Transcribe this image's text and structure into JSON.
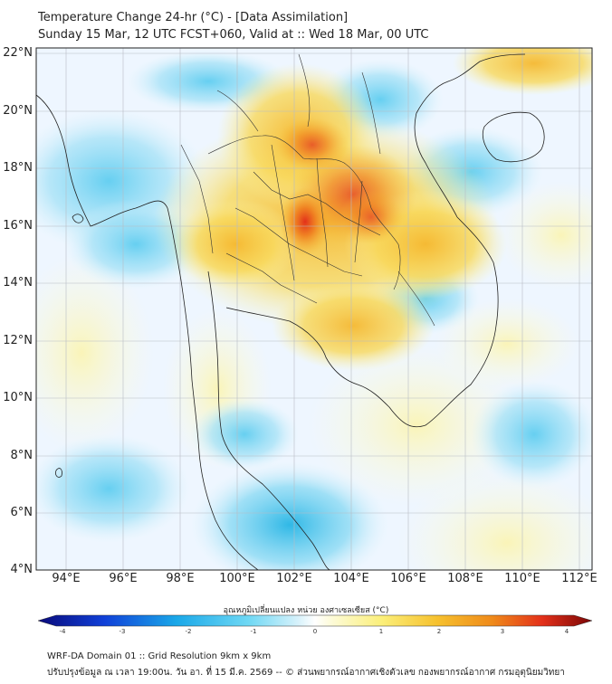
{
  "header": {
    "title_line1": "Temperature Change 24-hr (°C) - [Data Assimilation]",
    "title_line2": "Sunday 15 Mar, 12 UTC FCST+060, Valid at :: Wed 18 Mar, 00 UTC"
  },
  "axes": {
    "lat_labels": [
      "22°N",
      "20°N",
      "18°N",
      "16°N",
      "14°N",
      "12°N",
      "10°N",
      "8°N",
      "6°N",
      "4°N"
    ],
    "lon_labels": [
      "94°E",
      "96°E",
      "98°E",
      "100°E",
      "102°E",
      "104°E",
      "106°E",
      "108°E",
      "110°E",
      "112°E"
    ]
  },
  "colorbar": {
    "label": "อุณหภูมิเปลี่ยนแปลง หน่วย องศาเซลเซียส (°C)",
    "ticks": [
      "-4",
      "-3",
      "-2",
      "-1",
      "0",
      "1",
      "2",
      "3",
      "4"
    ],
    "min": -4,
    "max": 4
  },
  "footer": {
    "line1": "WRF-DA Domain 01 :: Grid Resolution 9km x 9km",
    "line2": "ปรับปรุงข้อมูล ณ เวลา 19:00น. วัน อา. ที่ 15 มี.ค. 2569 -- © ส่วนพยากรณ์อากาศเชิงตัวเลข กองพยากรณ์อากาศ กรมอุตุนิยมวิทยา"
  },
  "colors": {
    "ocean_neutral": "#eef6ff",
    "warm_center": "#e8301a",
    "cool_patch": "#2fc0e8"
  }
}
